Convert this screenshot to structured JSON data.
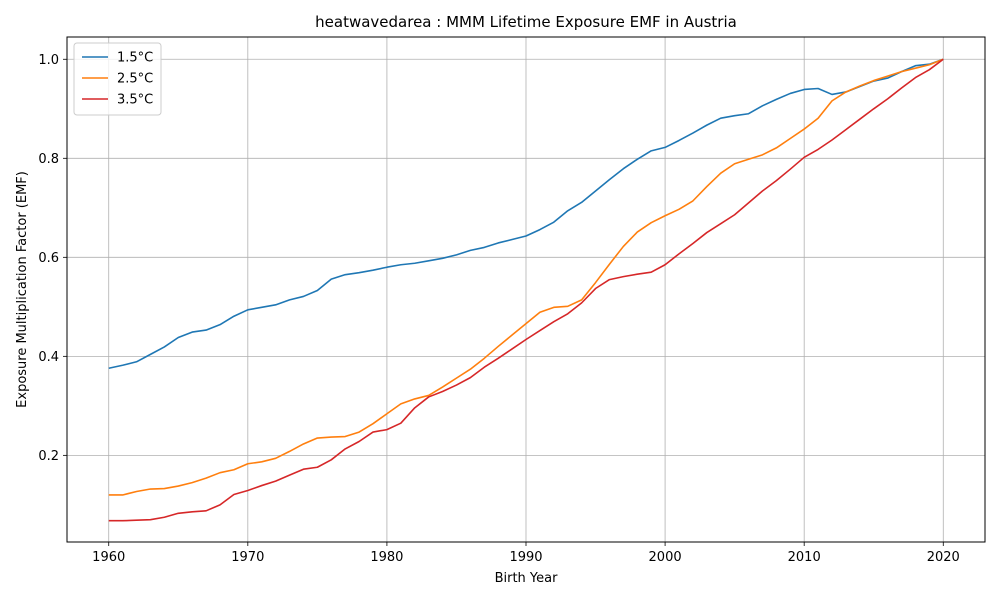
{
  "chart_data": {
    "type": "line",
    "title": "heatwavedarea : MMM Lifetime Exposure EMF in Austria",
    "xlabel": "Birth Year",
    "ylabel": "Exposure Multiplication Factor (EMF)",
    "xlim": [
      1957,
      2023
    ],
    "ylim": [
      0.025,
      1.045
    ],
    "xticks": [
      1960,
      1970,
      1980,
      1990,
      2000,
      2010,
      2020
    ],
    "yticks": [
      0.2,
      0.4,
      0.6,
      0.8,
      1.0
    ],
    "ytick_labels": [
      "0.2",
      "0.4",
      "0.6",
      "0.8",
      "1.0"
    ],
    "grid": true,
    "legend_position": "top-left",
    "x": [
      1960,
      1961,
      1962,
      1963,
      1964,
      1965,
      1966,
      1967,
      1968,
      1969,
      1970,
      1971,
      1972,
      1973,
      1974,
      1975,
      1976,
      1977,
      1978,
      1979,
      1980,
      1981,
      1982,
      1983,
      1984,
      1985,
      1986,
      1987,
      1988,
      1989,
      1990,
      1991,
      1992,
      1993,
      1994,
      1995,
      1996,
      1997,
      1998,
      1999,
      2000,
      2001,
      2002,
      2003,
      2004,
      2005,
      2006,
      2007,
      2008,
      2009,
      2010,
      2011,
      2012,
      2013,
      2014,
      2015,
      2016,
      2017,
      2018,
      2019,
      2020
    ],
    "series": [
      {
        "name": "1.5°C",
        "color": "#1f77b4",
        "values": [
          0.376,
          0.382,
          0.389,
          0.404,
          0.419,
          0.438,
          0.449,
          0.453,
          0.464,
          0.481,
          0.494,
          0.499,
          0.504,
          0.514,
          0.521,
          0.533,
          0.556,
          0.565,
          0.569,
          0.574,
          0.58,
          0.585,
          0.588,
          0.593,
          0.598,
          0.605,
          0.614,
          0.62,
          0.629,
          0.636,
          0.643,
          0.656,
          0.671,
          0.694,
          0.711,
          0.734,
          0.757,
          0.779,
          0.798,
          0.815,
          0.822,
          0.836,
          0.851,
          0.867,
          0.881,
          0.886,
          0.89,
          0.906,
          0.919,
          0.931,
          0.939,
          0.941,
          0.929,
          0.934,
          0.945,
          0.956,
          0.962,
          0.975,
          0.987,
          0.99,
          1.0
        ]
      },
      {
        "name": "2.5°C",
        "color": "#ff7f0e",
        "values": [
          0.12,
          0.12,
          0.127,
          0.132,
          0.133,
          0.138,
          0.145,
          0.154,
          0.165,
          0.171,
          0.183,
          0.187,
          0.194,
          0.208,
          0.223,
          0.235,
          0.237,
          0.238,
          0.247,
          0.264,
          0.284,
          0.304,
          0.314,
          0.321,
          0.338,
          0.356,
          0.374,
          0.396,
          0.42,
          0.443,
          0.466,
          0.489,
          0.499,
          0.501,
          0.514,
          0.549,
          0.586,
          0.622,
          0.651,
          0.67,
          0.684,
          0.697,
          0.714,
          0.743,
          0.77,
          0.789,
          0.798,
          0.807,
          0.821,
          0.84,
          0.859,
          0.881,
          0.916,
          0.934,
          0.946,
          0.957,
          0.966,
          0.975,
          0.982,
          0.989,
          1.0
        ]
      },
      {
        "name": "3.5°C",
        "color": "#d62728",
        "values": [
          0.068,
          0.068,
          0.069,
          0.07,
          0.075,
          0.083,
          0.086,
          0.088,
          0.1,
          0.121,
          0.129,
          0.139,
          0.148,
          0.16,
          0.172,
          0.176,
          0.191,
          0.213,
          0.228,
          0.247,
          0.252,
          0.265,
          0.296,
          0.318,
          0.329,
          0.342,
          0.357,
          0.378,
          0.396,
          0.415,
          0.434,
          0.452,
          0.47,
          0.486,
          0.508,
          0.537,
          0.555,
          0.561,
          0.566,
          0.57,
          0.585,
          0.607,
          0.628,
          0.65,
          0.668,
          0.686,
          0.71,
          0.734,
          0.755,
          0.778,
          0.802,
          0.818,
          0.837,
          0.858,
          0.879,
          0.9,
          0.92,
          0.942,
          0.963,
          0.979,
          1.0
        ]
      }
    ]
  }
}
